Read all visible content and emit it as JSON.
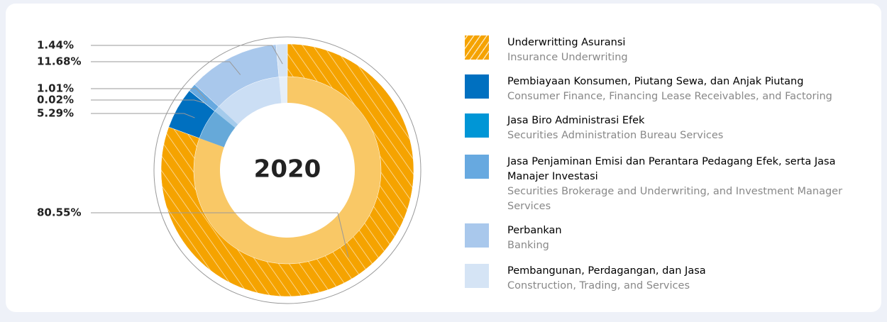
{
  "chart_data": {
    "type": "donut",
    "center_label": "2020",
    "categories": [
      "Underwritting Asuransi",
      "Pembiayaan Konsumen, Piutang Sewa, dan Anjak Piutang",
      "Jasa Biro Administrasi Efek",
      "Jasa Penjaminan Emisi dan Perantara Pedagang Efek, serta Jasa Manajer Investasi",
      "Perbankan",
      "Pembangunan, Perdagangan, dan Jasa"
    ],
    "categories_en": [
      "Insurance Underwriting",
      "Consumer Finance, Financing Lease Receivables, and Factoring",
      "Securities Administration Bureau Services",
      "Securities Brokerage and Underwriting, and Investment Manager Services",
      "Banking",
      "Construction, Trading, and Services"
    ],
    "values": [
      80.55,
      5.29,
      0.02,
      1.01,
      11.68,
      1.44
    ],
    "value_labels": [
      "80.55%",
      "5.29%",
      "0.02%",
      "1.01%",
      "11.68%",
      "1.44%"
    ],
    "colors": [
      "#f5a300",
      "#0070c0",
      "#0096d6",
      "#67a9e0",
      "#a9c8ec",
      "#d5e4f5"
    ],
    "hatched": [
      true,
      false,
      false,
      false,
      false,
      false
    ]
  }
}
